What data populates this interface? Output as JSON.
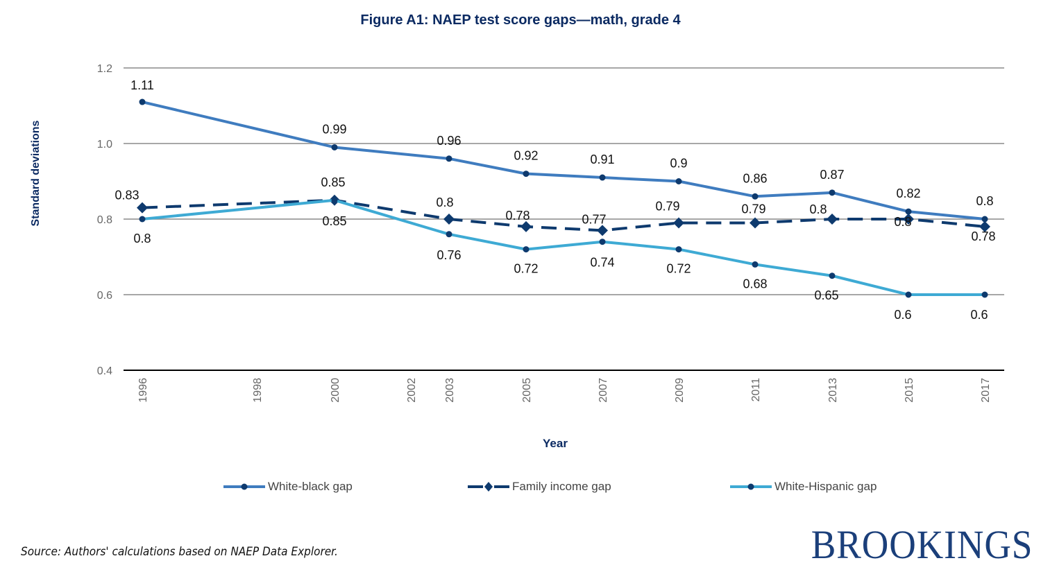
{
  "figure": {
    "source": "Source: Authors' calculations based on NAEP Data Explorer.",
    "logo": "BROOKINGS"
  },
  "chart_data": {
    "type": "line",
    "title": "Figure A1: NAEP test score gaps—math, grade 4",
    "xlabel": "Year",
    "ylabel": "Standard deviations",
    "ylim": [
      0.4,
      1.2
    ],
    "yticks": [
      "0.4",
      "0.6",
      "0.8",
      "1.0",
      "1.2"
    ],
    "ytick_values": [
      0.4,
      0.6,
      0.8,
      1.0,
      1.2
    ],
    "xticks": [
      "1996",
      "1998",
      "2000",
      "2002",
      "2003",
      "2005",
      "2007",
      "2009",
      "2011",
      "2013",
      "2015",
      "2017"
    ],
    "grid": true,
    "legend_position": "bottom",
    "x": [
      "1996",
      "2000",
      "2003",
      "2005",
      "2007",
      "2009",
      "2011",
      "2013",
      "2015",
      "2017"
    ],
    "series": [
      {
        "name": "White-black gap",
        "color": "#3f7cbf",
        "marker": "circle",
        "dashed": false,
        "values": [
          1.11,
          0.99,
          0.96,
          0.92,
          0.91,
          0.9,
          0.86,
          0.87,
          0.82,
          0.8
        ],
        "labels": [
          "1.11",
          "0.99",
          "0.96",
          "0.92",
          "0.91",
          "0.9",
          "0.86",
          "0.87",
          "0.82",
          "0.8"
        ]
      },
      {
        "name": "Family income gap",
        "color": "#0e3a6e",
        "marker": "diamond",
        "dashed": true,
        "values": [
          0.83,
          0.85,
          0.8,
          0.78,
          0.77,
          0.79,
          0.79,
          0.8,
          0.8,
          0.78
        ],
        "labels": [
          "0.83",
          "0.85",
          "0.8",
          "0.78",
          "0.77",
          "0.79",
          "0.79",
          "0.8",
          "0.8",
          "0.78"
        ]
      },
      {
        "name": "White-Hispanic gap",
        "color": "#3eaad4",
        "marker": "circle",
        "dashed": false,
        "values": [
          0.8,
          0.85,
          0.76,
          0.72,
          0.74,
          0.72,
          0.68,
          0.65,
          0.6,
          0.6
        ],
        "labels": [
          "0.8",
          "0.85",
          "0.76",
          "0.72",
          "0.74",
          "0.72",
          "0.68",
          "0.65",
          "0.6",
          "0.6"
        ]
      }
    ],
    "marker_color": "#0e3a6e"
  }
}
